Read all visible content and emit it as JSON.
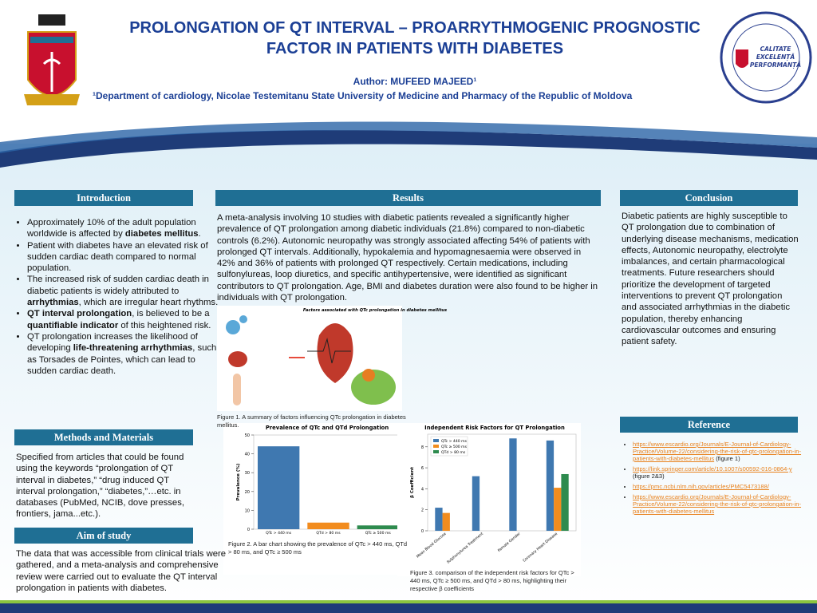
{
  "header": {
    "title_line1": "PROLONGATION OF QT INTERVAL – PROARRYTHMOGENIC PROGNOSTIC",
    "title_line2": "FACTOR IN PATIENTS WITH DIABETES",
    "author": "Author: MUFEED MAJEED¹",
    "affiliation": "¹Department of cardiology, Nicolae Testemitanu State University of Medicine and Pharmacy of the Republic of Moldova",
    "logo_motto": [
      "CALITATE",
      "EXCELENȚĂ",
      "PERFORMANȚĂ"
    ]
  },
  "introduction": {
    "heading": "Introduction",
    "bullets": [
      [
        {
          "t": "Approximately 10% of the adult population worldwide is affected by "
        },
        {
          "b": "diabetes mellitus"
        },
        {
          "t": "."
        }
      ],
      [
        {
          "t": "Patient with diabetes have an elevated risk of sudden cardiac death compared to normal population."
        }
      ],
      [
        {
          "t": "The increased risk of sudden cardiac death in diabetic patients is widely attributed to "
        },
        {
          "b": "arrhythmias"
        },
        {
          "t": ", which are irregular heart rhythms."
        }
      ],
      [
        {
          "b": "QT interval prolongation"
        },
        {
          "t": ", is believed to be a "
        },
        {
          "b": "quantifiable indicator"
        },
        {
          "t": " of this heightened risk."
        }
      ],
      [
        {
          "t": "QT prolongation increases the likelihood of developing "
        },
        {
          "b": "life-threatening arrhythmias"
        },
        {
          "t": ", such as Torsades de Pointes, which can lead to sudden cardiac death."
        }
      ]
    ]
  },
  "methods": {
    "heading": "Methods and Materials",
    "text": "Specified from articles that could be found using the keywords “prolongation of QT interval in diabetes,” “drug induced QT interval prolongation,” “diabetes,”…etc. in databases (PubMed, NCIB, dove presses, frontiers, jama...etc.)."
  },
  "aim": {
    "heading": "Aim of study",
    "text": "The data that was accessible from clinical trials were gathered, and a meta-analysis and comprehensive review were carried out to evaluate the QT interval prolongation in patients with diabetes."
  },
  "results": {
    "heading": "Results",
    "text": "A meta-analysis involving 10 studies with diabetic patients revealed a significantly higher prevalence of QT prolongation among diabetic individuals (21.8%) compared to non-diabetic controls (6.2%). Autonomic neuropathy was strongly associated affecting 54% of patients with prolonged QT intervals. Additionally, hypokalemia and hypomagnesaemia were observed in 42% and 36% of patients with prolonged QT respectively. Certain medications, including sulfonylureas, loop diuretics, and specific antihypertensive, were identified as significant contributors to QT prolongation. Age, BMI and diabetes duration were also found to be higher in individuals with QT prolongation.",
    "figure1_title": "Factors associated with QTc prolongation in diabetes mellitus",
    "figure1_caption": "Figure 1. A summary of factors influencing QTc prolongation in diabetes mellitus.",
    "figure2_caption": "Figure 2. A bar chart showing the prevalence of QTc > 440 ms, QTd > 80 ms, and QTc ≥ 500 ms",
    "figure3_caption": "Figure 3. comparison of the independent risk factors for QTc > 440 ms, QTc ≥ 500 ms, and QTd > 80 ms, highlighting their respective β coefficients"
  },
  "conclusion": {
    "heading": "Conclusion",
    "text": "Diabetic patients are highly susceptible to QT prolongation due to combination of underlying disease mechanisms, medication effects, Autonomic neuropathy, electrolyte imbalances, and certain pharmacological treatments. Future researchers should prioritize the development of targeted interventions to prevent QT prolongation and associated arrhythmias in the diabetic population, thereby enhancing cardiovascular outcomes and ensuring patient safety."
  },
  "reference": {
    "heading": "Reference",
    "items": [
      {
        "link": "https://www.escardio.org/Journals/E-Journal-of-Cardiology-Practice/Volume-22/considering-the-risk-of-qtc-prolongation-in-patients-with-diabetes-mellitus",
        "note": " (figure 1)"
      },
      {
        "link": "https://link.springer.com/article/10.1007/s00592-016-0864-y",
        "note": " (figure 2&3)"
      },
      {
        "link": "https://pmc.ncbi.nlm.nih.gov/articles/PMC5473188/"
      },
      {
        "link": "https://www.escardio.org/Journals/E-Journal-of-Cardiology-Practice/Volume-22/considering-the-risk-of-qtc-prolongation-in-patients-with-diabetes-mellitus"
      }
    ]
  },
  "chart_data": [
    {
      "type": "bar",
      "title": "Prevalence of QTc and QTd Prolongation",
      "ylabel": "Prevalence (%)",
      "categories": [
        "QTc > 440 ms",
        "QTd > 80 ms",
        "QTc ≥ 500 ms"
      ],
      "values": [
        44,
        3.5,
        2
      ],
      "colors": [
        "#3f78b0",
        "#f28c1e",
        "#2e8b4e"
      ],
      "ylim": [
        0,
        50
      ],
      "yticks": [
        0,
        10,
        20,
        30,
        40,
        50
      ]
    },
    {
      "type": "grouped-bar",
      "title": "Independent Risk Factors for QT Prolongation",
      "ylabel": "β Coefficient",
      "categories": [
        "Mean Blood Glucose",
        "Sulphonylurea Treatment",
        "Female Gender",
        "Coronary Heart Disease"
      ],
      "series": [
        {
          "name": "QTc > 440 ms",
          "color": "#3f78b0",
          "values": [
            2.2,
            5.2,
            8.8,
            8.6
          ]
        },
        {
          "name": "QTc ≥ 500 ms",
          "color": "#f28c1e",
          "values": [
            1.7,
            null,
            null,
            4.1
          ]
        },
        {
          "name": "QTd > 80 ms",
          "color": "#2e8b4e",
          "values": [
            null,
            null,
            null,
            5.4
          ]
        }
      ],
      "ylim": [
        0,
        9.2
      ],
      "yticks": [
        0,
        2,
        4,
        6,
        8
      ],
      "legend": "upper left",
      "xtick_rotation": 40
    }
  ]
}
